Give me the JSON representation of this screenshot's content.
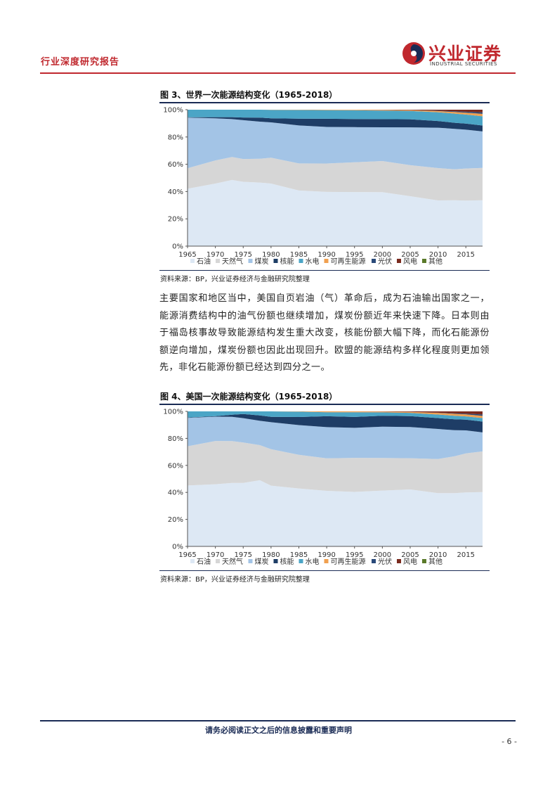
{
  "header": {
    "section_label": "行业深度研究报告",
    "logo_cn": "兴业证券",
    "logo_en": "INDUSTRIAL SECURITIES"
  },
  "figures": [
    {
      "title": "图 3、世界一次能源结构变化（1965-2018）",
      "source": "资料来源：BP，兴业证券经济与金融研究院整理"
    },
    {
      "title": "图 4、美国一次能源结构变化（1965-2018）",
      "source": "资料来源：BP，兴业证券经济与金融研究院整理"
    }
  ],
  "body_paragraph": "主要国家和地区当中，美国自页岩油（气）革命后，成为石油输出国家之一，能源消费结构中的油气份额也继续增加，煤炭份额近年来快速下降。日本则由于福岛核事故导致能源结构发生重大改变，核能份额大幅下降，而化石能源份额逆向增加，煤炭份额也因此出现回升。欧盟的能源结构多样化程度则更加领先，非化石能源份额已经达到四分之一。",
  "footer": {
    "disclaimer": "请务必阅读正文之后的信息披露和重要声明",
    "page_number": "- 6 -"
  },
  "chart_data": [
    {
      "type": "area",
      "stacked": true,
      "title": "图 3、世界一次能源结构变化（1965-2018）",
      "x_ticks": [
        "1965",
        "1970",
        "1975",
        "1980",
        "1985",
        "1990",
        "1995",
        "2000",
        "2005",
        "2010",
        "2015"
      ],
      "y_ticks": [
        "0%",
        "20%",
        "40%",
        "60%",
        "80%",
        "100%"
      ],
      "ylim": [
        0,
        100
      ],
      "grid": false,
      "legend_position": "bottom",
      "x": [
        1965,
        1970,
        1973,
        1975,
        1978,
        1980,
        1985,
        1990,
        1995,
        2000,
        2005,
        2010,
        2013,
        2015,
        2018
      ],
      "series": [
        {
          "name": "石油",
          "color": "#dde8f4",
          "values": [
            42,
            46,
            49,
            48,
            48,
            46,
            41,
            40,
            40,
            40,
            37,
            34,
            34,
            34,
            34
          ]
        },
        {
          "name": "天然气",
          "color": "#d6d6d6",
          "values": [
            15,
            17,
            17,
            17,
            18,
            19,
            20,
            21,
            22,
            23,
            23,
            24,
            23,
            24,
            24
          ]
        },
        {
          "name": "煤炭",
          "color": "#a3c4e6",
          "values": [
            37,
            31,
            28,
            29,
            28,
            26,
            28,
            27,
            26,
            25,
            28,
            30,
            30,
            29,
            27
          ]
        },
        {
          "name": "核能",
          "color": "#1e3d66",
          "values": [
            0.3,
            0.8,
            1.5,
            2,
            3,
            3,
            5,
            6,
            6,
            6,
            6,
            5,
            4.5,
            4.5,
            4.4
          ]
        },
        {
          "name": "水电",
          "color": "#4ba5c6",
          "values": [
            5.5,
            5.5,
            5.5,
            5.8,
            6,
            6.2,
            6.4,
            6.4,
            6.5,
            6.4,
            6.2,
            6.5,
            6.8,
            6.8,
            6.8
          ]
        },
        {
          "name": "可再生能源",
          "color": "#f0a050",
          "values": [
            0,
            0,
            0,
            0,
            0,
            0.1,
            0.2,
            0.3,
            0.4,
            0.5,
            0.6,
            0.9,
            1.2,
            1.4,
            1.8
          ]
        },
        {
          "name": "光伏",
          "color": "#2a4a7a",
          "values": [
            0,
            0,
            0,
            0,
            0,
            0,
            0,
            0,
            0,
            0,
            0,
            0.2,
            0.5,
            0.7,
            1.1
          ]
        },
        {
          "name": "风电",
          "color": "#7a2a1e",
          "values": [
            0,
            0,
            0,
            0,
            0,
            0,
            0,
            0,
            0,
            0.1,
            0.3,
            0.8,
            1.2,
            1.5,
            2.0
          ]
        },
        {
          "name": "其他",
          "color": "#5a7a2a",
          "values": [
            0,
            0,
            0,
            0,
            0,
            0,
            0,
            0,
            0,
            0,
            0,
            0,
            0,
            0,
            0
          ]
        }
      ]
    },
    {
      "type": "area",
      "stacked": true,
      "title": "图 4、美国一次能源结构变化（1965-2018）",
      "x_ticks": [
        "1965",
        "1970",
        "1975",
        "1980",
        "1985",
        "1990",
        "1995",
        "2000",
        "2005",
        "2010",
        "2015"
      ],
      "y_ticks": [
        "0%",
        "20%",
        "40%",
        "60%",
        "80%",
        "100%"
      ],
      "ylim": [
        0,
        100
      ],
      "grid": false,
      "legend_position": "bottom",
      "x": [
        1965,
        1970,
        1973,
        1975,
        1978,
        1980,
        1985,
        1990,
        1995,
        2000,
        2005,
        2010,
        2013,
        2015,
        2018
      ],
      "series": [
        {
          "name": "石油",
          "color": "#dde8f4",
          "values": [
            45,
            46,
            47,
            47,
            49,
            45,
            43,
            41,
            40,
            41,
            42,
            39,
            39,
            40,
            40
          ]
        },
        {
          "name": "天然气",
          "color": "#d6d6d6",
          "values": [
            29,
            32,
            31,
            30,
            26,
            27,
            25,
            24,
            25,
            24,
            23,
            25,
            27,
            29,
            30
          ]
        },
        {
          "name": "煤炭",
          "color": "#a3c4e6",
          "values": [
            21,
            18,
            18,
            18,
            18,
            20,
            22,
            23,
            22,
            23,
            23,
            22,
            19,
            17,
            14
          ]
        },
        {
          "name": "核能",
          "color": "#1e3d66",
          "values": [
            0.3,
            0.4,
            1.5,
            3,
            4,
            4,
            6,
            8,
            8,
            8,
            8,
            8,
            8,
            8,
            8
          ]
        },
        {
          "name": "水电",
          "color": "#4ba5c6",
          "values": [
            4.5,
            3.5,
            2.5,
            2,
            3,
            4,
            4,
            3,
            3.5,
            2.5,
            2.4,
            2.6,
            2.6,
            2.4,
            2.6
          ]
        },
        {
          "name": "可再生能源",
          "color": "#f0a050",
          "values": [
            0,
            0,
            0,
            0,
            0,
            0,
            0.2,
            0.6,
            0.6,
            0.6,
            0.7,
            1.2,
            1.4,
            1.5,
            1.6
          ]
        },
        {
          "name": "光伏",
          "color": "#2a4a7a",
          "values": [
            0,
            0,
            0,
            0,
            0,
            0,
            0,
            0,
            0,
            0,
            0,
            0.1,
            0.3,
            0.5,
            1.0
          ]
        },
        {
          "name": "风电",
          "color": "#7a2a1e",
          "values": [
            0,
            0,
            0,
            0,
            0,
            0,
            0,
            0,
            0,
            0.1,
            0.4,
            1.0,
            1.5,
            1.7,
            2.3
          ]
        },
        {
          "name": "其他",
          "color": "#5a7a2a",
          "values": [
            0,
            0,
            0,
            0,
            0,
            0,
            0,
            0,
            0,
            0,
            0,
            0,
            0,
            0,
            0
          ]
        }
      ]
    }
  ]
}
